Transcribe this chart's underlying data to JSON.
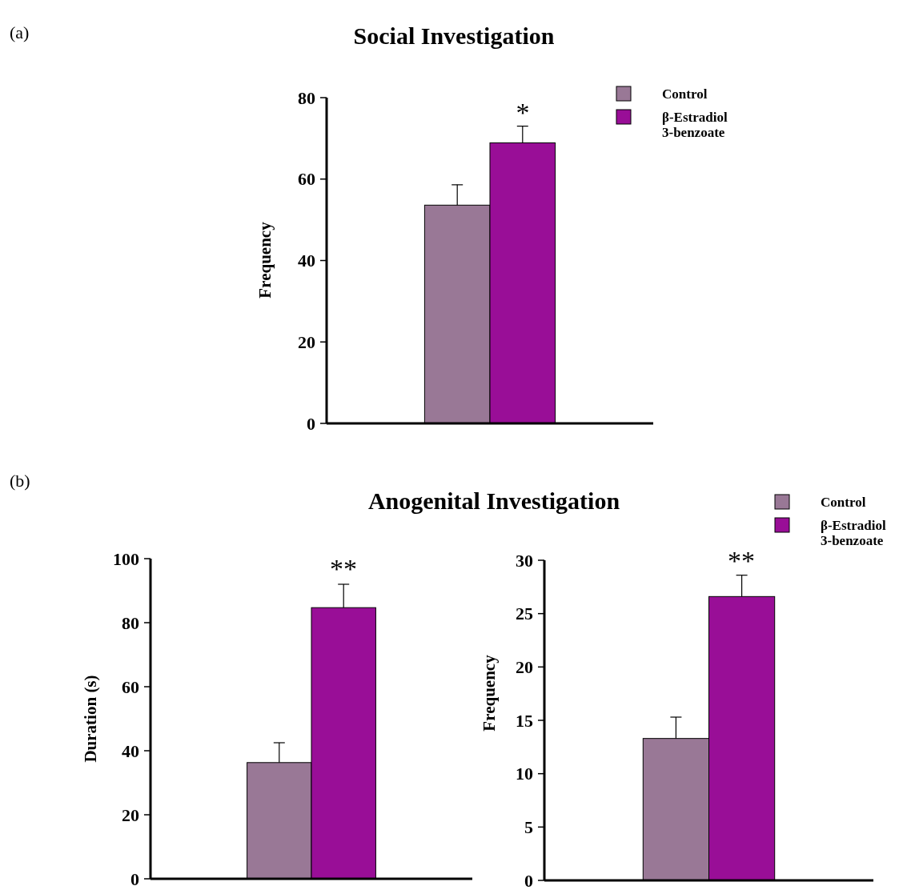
{
  "chart_data": [
    {
      "type": "bar",
      "title": "Social Investigation",
      "ylabel": "Frequency",
      "categories": [
        null
      ],
      "ylim": [
        0,
        80
      ],
      "yticks": [
        0,
        20,
        40,
        60,
        80
      ],
      "legend": "top right",
      "grid": false,
      "annotations": [
        "(a)",
        "*"
      ],
      "series": [
        {
          "name": "Control",
          "color": "#997896",
          "values": [
            53.6
          ],
          "errors": [
            5.0
          ]
        },
        {
          "name": "β-Estradiol 3-benzoate",
          "color": "#990e97",
          "values": [
            68.9
          ],
          "errors": [
            4.1
          ]
        }
      ]
    },
    {
      "type": "bar",
      "title": "Anogenital Investigation",
      "ylabel": "Duration (s)",
      "categories": [
        null
      ],
      "ylim": [
        0,
        100
      ],
      "yticks": [
        0,
        20,
        40,
        60,
        80,
        100
      ],
      "grid": false,
      "annotations": [
        "(b)",
        "**"
      ],
      "series": [
        {
          "color": "#997896",
          "values": [
            36.3
          ],
          "errors": [
            6.2
          ]
        },
        {
          "color": "#990e97",
          "values": [
            84.7
          ],
          "errors": [
            7.3
          ]
        }
      ]
    },
    {
      "type": "bar",
      "ylabel": "Frequency",
      "categories": [
        null
      ],
      "ylim": [
        0,
        30
      ],
      "yticks": [
        0,
        5,
        10,
        15,
        20,
        25,
        30
      ],
      "legend": "top right",
      "grid": false,
      "annotations": [
        "**"
      ],
      "series": [
        {
          "name": "Control",
          "color": "#997896",
          "values": [
            13.3
          ],
          "errors": [
            2.0
          ]
        },
        {
          "name": "β-Estradiol 3-benzoate",
          "color": "#990e97",
          "values": [
            26.6
          ],
          "errors": [
            2.0
          ]
        }
      ]
    }
  ]
}
